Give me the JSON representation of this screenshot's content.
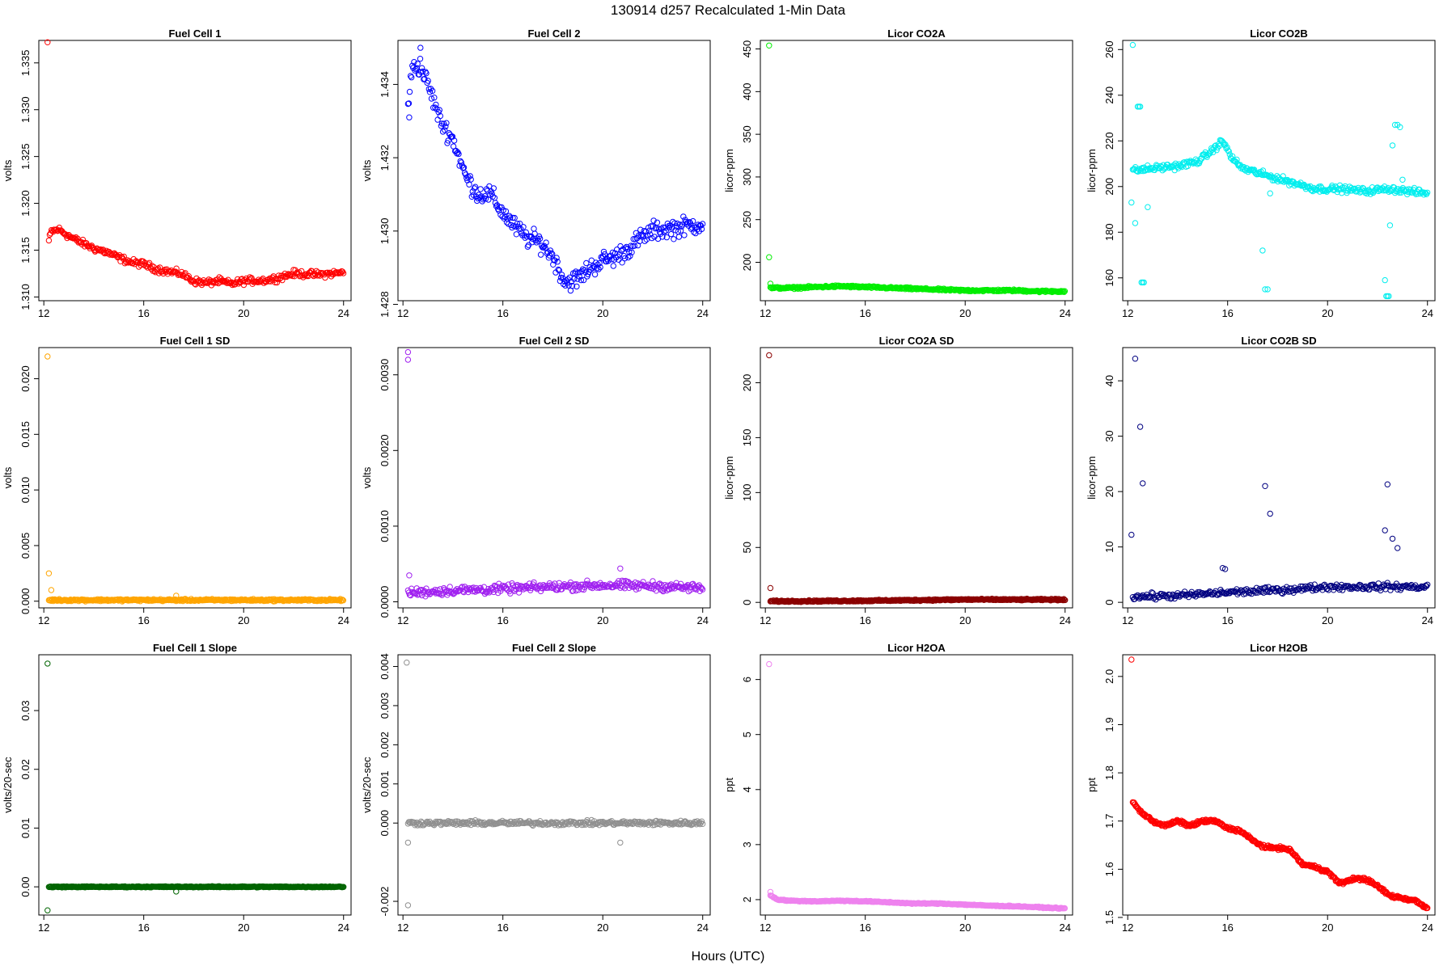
{
  "figure": {
    "title": "130914   d257   Recalculated 1-Min Data",
    "xlabel": "Hours (UTC)"
  },
  "chart_data": [
    {
      "type": "scatter",
      "title": "Fuel Cell 1",
      "ylabel": "volts",
      "color": "#ff0000",
      "xlim": [
        11.8,
        24.3
      ],
      "ylim": [
        1.3096,
        1.3374
      ],
      "xticks": [
        12,
        16,
        20,
        24
      ],
      "yticks": [
        1.31,
        1.315,
        1.32,
        1.325,
        1.33,
        1.335
      ],
      "ytick_labels": [
        "1.310",
        "1.315",
        "1.320",
        "1.325",
        "1.330",
        "1.335"
      ],
      "trend": [
        [
          12.2,
          1.316
        ],
        [
          12.3,
          1.317
        ],
        [
          12.6,
          1.3172
        ],
        [
          13.0,
          1.3165
        ],
        [
          13.5,
          1.3158
        ],
        [
          14.0,
          1.3152
        ],
        [
          14.5,
          1.3148
        ],
        [
          15.0,
          1.3142
        ],
        [
          15.5,
          1.3137
        ],
        [
          16.0,
          1.3135
        ],
        [
          16.5,
          1.313
        ],
        [
          17.0,
          1.3127
        ],
        [
          17.5,
          1.3125
        ],
        [
          18.0,
          1.3117
        ],
        [
          18.5,
          1.3115
        ],
        [
          19.0,
          1.3117
        ],
        [
          19.5,
          1.3114
        ],
        [
          20.0,
          1.3117
        ],
        [
          21.0,
          1.3118
        ],
        [
          22.0,
          1.3125
        ],
        [
          23.0,
          1.3124
        ],
        [
          24.0,
          1.3126
        ]
      ],
      "noise": 0.0003,
      "every": 0.035,
      "outliers": [
        [
          12.15,
          1.3372
        ]
      ]
    },
    {
      "type": "scatter",
      "title": "Fuel Cell 2",
      "ylabel": "volts",
      "color": "#0000ff",
      "xlim": [
        11.8,
        24.3
      ],
      "ylim": [
        1.4281,
        1.4352
      ],
      "xticks": [
        12,
        16,
        20,
        24
      ],
      "yticks": [
        1.428,
        1.43,
        1.432,
        1.434
      ],
      "ytick_labels": [
        "1.428",
        "1.430",
        "1.432",
        "1.434"
      ],
      "trend": [
        [
          12.2,
          1.4335
        ],
        [
          12.4,
          1.4345
        ],
        [
          12.7,
          1.4345
        ],
        [
          13.0,
          1.434
        ],
        [
          13.5,
          1.433
        ],
        [
          14.0,
          1.4325
        ],
        [
          14.5,
          1.4315
        ],
        [
          15.0,
          1.431
        ],
        [
          15.5,
          1.431
        ],
        [
          16.0,
          1.4305
        ],
        [
          16.5,
          1.4301
        ],
        [
          17.0,
          1.4298
        ],
        [
          17.5,
          1.4297
        ],
        [
          18.0,
          1.4293
        ],
        [
          18.5,
          1.4286
        ],
        [
          19.0,
          1.4287
        ],
        [
          19.5,
          1.429
        ],
        [
          20.0,
          1.4292
        ],
        [
          20.5,
          1.4293
        ],
        [
          21.0,
          1.4295
        ],
        [
          21.5,
          1.4298
        ],
        [
          22.0,
          1.43
        ],
        [
          23.0,
          1.4301
        ],
        [
          24.0,
          1.4302
        ]
      ],
      "noise": 0.00022,
      "every": 0.035,
      "outliers": [
        [
          12.25,
          1.4331
        ],
        [
          12.7,
          1.435
        ]
      ]
    },
    {
      "type": "scatter",
      "title": "Licor CO2A",
      "ylabel": "licor-ppm",
      "color": "#00ee00",
      "xlim": [
        11.8,
        24.3
      ],
      "ylim": [
        155,
        460
      ],
      "xticks": [
        12,
        16,
        20,
        24
      ],
      "yticks": [
        200,
        250,
        300,
        350,
        400,
        450
      ],
      "ytick_labels": [
        "200",
        "250",
        "300",
        "350",
        "400",
        "450"
      ],
      "trend": [
        [
          12.2,
          170
        ],
        [
          13.0,
          170
        ],
        [
          14.0,
          171
        ],
        [
          15.0,
          172
        ],
        [
          16.0,
          171
        ],
        [
          17.0,
          170
        ],
        [
          18.0,
          169
        ],
        [
          19.0,
          168
        ],
        [
          20.0,
          167
        ],
        [
          21.0,
          167
        ],
        [
          22.0,
          167
        ],
        [
          23.0,
          166
        ],
        [
          24.0,
          166
        ]
      ],
      "noise": 1.0,
      "every": 0.03,
      "outliers": [
        [
          12.15,
          454
        ],
        [
          12.15,
          206
        ],
        [
          12.2,
          175
        ]
      ]
    },
    {
      "type": "scatter",
      "title": "Licor CO2B",
      "ylabel": "licor-ppm",
      "color": "#00eeee",
      "xlim": [
        11.8,
        24.3
      ],
      "ylim": [
        150,
        264
      ],
      "xticks": [
        12,
        16,
        20,
        24
      ],
      "yticks": [
        160,
        180,
        200,
        220,
        240,
        260
      ],
      "ytick_labels": [
        "160",
        "180",
        "200",
        "220",
        "240",
        "260"
      ],
      "trend": [
        [
          12.2,
          207
        ],
        [
          13.0,
          208
        ],
        [
          14.0,
          209
        ],
        [
          14.8,
          211
        ],
        [
          15.3,
          215
        ],
        [
          15.8,
          220
        ],
        [
          16.2,
          212
        ],
        [
          16.6,
          208
        ],
        [
          17.5,
          205
        ],
        [
          18.5,
          202
        ],
        [
          19.5,
          199
        ],
        [
          20.5,
          199
        ],
        [
          21.5,
          198
        ],
        [
          22.5,
          199
        ],
        [
          23.2,
          198
        ],
        [
          24.0,
          197
        ]
      ],
      "noise": 1.2,
      "every": 0.035,
      "outliers": [
        [
          12.2,
          262
        ],
        [
          12.15,
          193
        ],
        [
          12.3,
          184
        ],
        [
          12.4,
          235
        ],
        [
          12.45,
          235
        ],
        [
          12.5,
          235
        ],
        [
          12.55,
          158
        ],
        [
          12.6,
          158
        ],
        [
          12.65,
          158
        ],
        [
          12.8,
          191
        ],
        [
          17.4,
          172
        ],
        [
          17.5,
          155
        ],
        [
          17.6,
          155
        ],
        [
          17.7,
          197
        ],
        [
          22.3,
          159
        ],
        [
          22.35,
          152
        ],
        [
          22.4,
          152
        ],
        [
          22.45,
          152
        ],
        [
          22.5,
          183
        ],
        [
          22.6,
          218
        ],
        [
          22.7,
          227
        ],
        [
          22.8,
          227
        ],
        [
          22.9,
          226
        ],
        [
          23.0,
          203
        ]
      ]
    },
    {
      "type": "scatter",
      "title": "Fuel Cell 1 SD",
      "ylabel": "volts",
      "color": "#ffa500",
      "xlim": [
        11.8,
        24.3
      ],
      "ylim": [
        -0.0006,
        0.0228
      ],
      "xticks": [
        12,
        16,
        20,
        24
      ],
      "yticks": [
        0.0,
        0.005,
        0.01,
        0.015,
        0.02
      ],
      "ytick_labels": [
        "0.000",
        "0.005",
        "0.010",
        "0.015",
        "0.020"
      ],
      "trend": [
        [
          12.2,
          0.0001
        ],
        [
          24.0,
          0.0001
        ]
      ],
      "noise": 8e-05,
      "every": 0.03,
      "outliers": [
        [
          12.15,
          0.022
        ],
        [
          12.2,
          0.0025
        ],
        [
          12.3,
          0.001
        ],
        [
          17.3,
          0.0005
        ]
      ]
    },
    {
      "type": "scatter",
      "title": "Fuel Cell 2 SD",
      "ylabel": "volts",
      "color": "#a020f0",
      "xlim": [
        11.8,
        24.3
      ],
      "ylim": [
        -8e-05,
        0.00336
      ],
      "xticks": [
        12,
        16,
        20,
        24
      ],
      "yticks": [
        0.0,
        0.001,
        0.002,
        0.003
      ],
      "ytick_labels": [
        "0.0000",
        "0.0010",
        "0.0020",
        "0.0030"
      ],
      "trend": [
        [
          12.2,
          0.00012
        ],
        [
          14.0,
          0.00015
        ],
        [
          16.0,
          0.00017
        ],
        [
          18.0,
          0.0002
        ],
        [
          20.0,
          0.00022
        ],
        [
          22.0,
          0.00021
        ],
        [
          24.0,
          0.00018
        ]
      ],
      "noise": 5e-05,
      "every": 0.035,
      "outliers": [
        [
          12.2,
          0.0033
        ],
        [
          12.2,
          0.0032
        ],
        [
          12.25,
          0.00035
        ],
        [
          20.7,
          0.00044
        ]
      ]
    },
    {
      "type": "scatter",
      "title": "Licor CO2A SD",
      "ylabel": "licor-ppm",
      "color": "#8b0000",
      "xlim": [
        11.8,
        24.3
      ],
      "ylim": [
        -5,
        232
      ],
      "xticks": [
        12,
        16,
        20,
        24
      ],
      "yticks": [
        0,
        50,
        100,
        150,
        200
      ],
      "ytick_labels": [
        "0",
        "50",
        "100",
        "150",
        "200"
      ],
      "trend": [
        [
          12.2,
          1.0
        ],
        [
          14.0,
          1.2
        ],
        [
          16.0,
          1.5
        ],
        [
          18.0,
          2.0
        ],
        [
          20.0,
          2.6
        ],
        [
          22.0,
          2.5
        ],
        [
          24.0,
          2.5
        ]
      ],
      "noise": 0.6,
      "every": 0.025,
      "outliers": [
        [
          12.15,
          225
        ],
        [
          12.2,
          13
        ]
      ]
    },
    {
      "type": "scatter",
      "title": "Licor CO2B SD",
      "ylabel": "licor-ppm",
      "color": "#000080",
      "xlim": [
        11.8,
        24.3
      ],
      "ylim": [
        -1,
        46
      ],
      "xticks": [
        12,
        16,
        20,
        24
      ],
      "yticks": [
        0,
        10,
        20,
        30,
        40
      ],
      "ytick_labels": [
        "0",
        "10",
        "20",
        "30",
        "40"
      ],
      "trend": [
        [
          12.2,
          1.0
        ],
        [
          14.0,
          1.2
        ],
        [
          16.0,
          1.8
        ],
        [
          18.0,
          2.2
        ],
        [
          20.0,
          2.8
        ],
        [
          22.0,
          2.8
        ],
        [
          24.0,
          2.8
        ]
      ],
      "noise": 0.5,
      "every": 0.04,
      "outliers": [
        [
          12.15,
          12.2
        ],
        [
          12.3,
          44
        ],
        [
          12.5,
          31.7
        ],
        [
          12.6,
          21.5
        ],
        [
          15.8,
          6.2
        ],
        [
          15.9,
          6.0
        ],
        [
          17.5,
          21
        ],
        [
          17.7,
          16
        ],
        [
          22.3,
          13
        ],
        [
          22.4,
          21.3
        ],
        [
          22.6,
          11.5
        ],
        [
          22.8,
          9.8
        ]
      ]
    },
    {
      "type": "scatter",
      "title": "Fuel Cell 1 Slope",
      "ylabel": "volts/20-sec",
      "color": "#006400",
      "xlim": [
        11.8,
        24.3
      ],
      "ylim": [
        -0.0048,
        0.0395
      ],
      "xticks": [
        12,
        16,
        20,
        24
      ],
      "yticks": [
        0.0,
        0.01,
        0.02,
        0.03
      ],
      "ytick_labels": [
        "0.00",
        "0.01",
        "0.02",
        "0.03"
      ],
      "trend": [
        [
          12.2,
          0.0
        ],
        [
          24.0,
          0.0
        ]
      ],
      "noise": 8e-05,
      "every": 0.025,
      "outliers": [
        [
          12.15,
          0.038
        ],
        [
          12.15,
          -0.004
        ],
        [
          17.3,
          -0.0008
        ]
      ]
    },
    {
      "type": "scatter",
      "title": "Fuel Cell 2 Slope",
      "ylabel": "volts/20-sec",
      "color": "#909090",
      "xlim": [
        11.8,
        24.3
      ],
      "ylim": [
        -0.00235,
        0.0043
      ],
      "xticks": [
        12,
        16,
        20,
        24
      ],
      "yticks": [
        -0.002,
        0.0,
        0.001,
        0.002,
        0.003,
        0.004
      ],
      "ytick_labels": [
        "-0.002",
        "0.000",
        "0.001",
        "0.002",
        "0.003",
        "0.004"
      ],
      "trend": [
        [
          12.2,
          0.0
        ],
        [
          24.0,
          0.0
        ]
      ],
      "noise": 5e-05,
      "every": 0.035,
      "outliers": [
        [
          12.15,
          0.0041
        ],
        [
          12.2,
          -0.0005
        ],
        [
          12.2,
          -0.0021
        ],
        [
          20.7,
          -0.0005
        ]
      ]
    },
    {
      "type": "scatter",
      "title": "Licor H2OA",
      "ylabel": "ppt",
      "color": "#ee82ee",
      "xlim": [
        11.8,
        24.3
      ],
      "ylim": [
        1.72,
        6.45
      ],
      "xticks": [
        12,
        16,
        20,
        24
      ],
      "yticks": [
        2,
        3,
        4,
        5,
        6
      ],
      "ytick_labels": [
        "2",
        "3",
        "4",
        "5",
        "6"
      ],
      "trend": [
        [
          12.2,
          2.08
        ],
        [
          12.5,
          2.0
        ],
        [
          13.0,
          1.98
        ],
        [
          14.0,
          1.97
        ],
        [
          15.0,
          1.98
        ],
        [
          16.0,
          1.97
        ],
        [
          17.0,
          1.95
        ],
        [
          18.0,
          1.93
        ],
        [
          19.0,
          1.93
        ],
        [
          20.0,
          1.91
        ],
        [
          21.0,
          1.89
        ],
        [
          22.0,
          1.88
        ],
        [
          23.0,
          1.86
        ],
        [
          24.0,
          1.84
        ]
      ],
      "noise": 0.008,
      "every": 0.03,
      "outliers": [
        [
          12.15,
          6.28
        ],
        [
          12.2,
          2.14
        ]
      ]
    },
    {
      "type": "scatter",
      "title": "Licor H2OB",
      "ylabel": "ppt",
      "color": "#ff0000",
      "xlim": [
        11.8,
        24.3
      ],
      "ylim": [
        1.505,
        2.045
      ],
      "xticks": [
        12,
        16,
        20,
        24
      ],
      "yticks": [
        1.5,
        1.6,
        1.7,
        1.8,
        1.9,
        2.0
      ],
      "ytick_labels": [
        "1.5",
        "1.6",
        "1.7",
        "1.8",
        "1.9",
        "2.0"
      ],
      "trend": [
        [
          12.2,
          1.74
        ],
        [
          12.5,
          1.72
        ],
        [
          13.0,
          1.7
        ],
        [
          13.5,
          1.69
        ],
        [
          14.0,
          1.7
        ],
        [
          14.5,
          1.69
        ],
        [
          15.0,
          1.7
        ],
        [
          15.5,
          1.7
        ],
        [
          16.0,
          1.685
        ],
        [
          16.5,
          1.68
        ],
        [
          17.0,
          1.66
        ],
        [
          17.5,
          1.645
        ],
        [
          18.0,
          1.645
        ],
        [
          18.5,
          1.64
        ],
        [
          19.0,
          1.61
        ],
        [
          19.5,
          1.605
        ],
        [
          20.0,
          1.595
        ],
        [
          20.5,
          1.57
        ],
        [
          21.0,
          1.58
        ],
        [
          21.5,
          1.58
        ],
        [
          22.0,
          1.565
        ],
        [
          22.5,
          1.545
        ],
        [
          23.0,
          1.54
        ],
        [
          23.5,
          1.535
        ],
        [
          24.0,
          1.52
        ]
      ],
      "noise": 0.003,
      "every": 0.025,
      "outliers": [
        [
          12.15,
          2.035
        ]
      ]
    }
  ]
}
